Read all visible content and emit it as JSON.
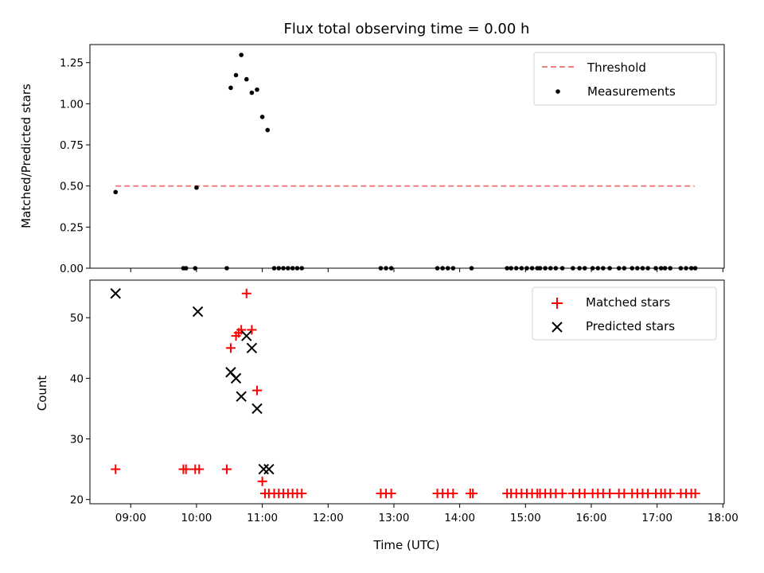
{
  "chart_data": [
    {
      "type": "scatter",
      "title": "Flux total observing time = 0.00 h",
      "xlabel": "",
      "ylabel": "Matched/Predicted stars",
      "xlim": [
        8.38,
        18.02
      ],
      "ylim": [
        0.0,
        1.36
      ],
      "yticks": [
        0.0,
        0.25,
        0.5,
        0.75,
        1.0,
        1.25
      ],
      "ytick_labels": [
        "0.00",
        "0.25",
        "0.50",
        "0.75",
        "1.00",
        "1.25"
      ],
      "xticks": [
        9,
        10,
        11,
        12,
        13,
        14,
        15,
        16,
        17,
        18
      ],
      "show_xtick_labels": false,
      "grid": false,
      "legend_position": "upper right",
      "threshold": {
        "name": "Threshold",
        "y": 0.5,
        "x_range": [
          8.77,
          17.57
        ],
        "color": "#f08080",
        "style": "dashed"
      },
      "series": [
        {
          "name": "Measurements",
          "marker": "dot",
          "color": "#000000",
          "x": [
            8.77,
            10.0,
            10.52,
            10.6,
            10.68,
            10.76,
            10.84,
            10.92,
            11.0,
            11.08,
            9.8,
            9.84,
            9.98,
            10.46,
            11.18,
            11.25,
            11.32,
            11.39,
            11.46,
            11.53,
            11.6,
            12.8,
            12.88,
            12.96,
            13.66,
            13.74,
            13.82,
            13.9,
            14.18,
            14.72,
            14.78,
            14.86,
            14.94,
            15.02,
            15.1,
            15.18,
            15.22,
            15.3,
            15.38,
            15.46,
            15.56,
            15.72,
            15.82,
            15.9,
            16.02,
            16.1,
            16.18,
            16.28,
            16.42,
            16.5,
            16.62,
            16.7,
            16.78,
            16.86,
            16.98,
            17.06,
            17.12,
            17.2,
            17.36,
            17.44,
            17.52,
            17.58
          ],
          "y": [
            0.463,
            0.49,
            1.097,
            1.174,
            1.297,
            1.149,
            1.067,
            1.086,
            0.92,
            0.84,
            0,
            0,
            0,
            0,
            0,
            0,
            0,
            0,
            0,
            0,
            0,
            0,
            0,
            0,
            0,
            0,
            0,
            0,
            0,
            0,
            0,
            0,
            0,
            0,
            0,
            0,
            0,
            0,
            0,
            0,
            0,
            0,
            0,
            0,
            0,
            0,
            0,
            0,
            0,
            0,
            0,
            0,
            0,
            0,
            0,
            0,
            0,
            0,
            0,
            0,
            0,
            0
          ]
        }
      ]
    },
    {
      "type": "scatter",
      "title": "",
      "xlabel": "Time (UTC)",
      "ylabel": "Count",
      "xlim": [
        8.38,
        18.02
      ],
      "ylim": [
        19.3,
        56.2
      ],
      "yticks": [
        20,
        30,
        40,
        50
      ],
      "ytick_labels": [
        "20",
        "30",
        "40",
        "50"
      ],
      "xticks": [
        9,
        10,
        11,
        12,
        13,
        14,
        15,
        16,
        17,
        18
      ],
      "xtick_labels": [
        "09:00",
        "10:00",
        "11:00",
        "12:00",
        "13:00",
        "14:00",
        "15:00",
        "16:00",
        "17:00",
        "18:00"
      ],
      "grid": false,
      "legend_position": "upper right",
      "series": [
        {
          "name": "Matched stars",
          "marker": "plus",
          "color": "#ff0000",
          "x": [
            8.77,
            9.8,
            9.84,
            9.98,
            10.04,
            10.46,
            10.52,
            10.6,
            10.64,
            10.68,
            10.76,
            10.84,
            10.92,
            11.0,
            11.04,
            11.1,
            11.18,
            11.25,
            11.32,
            11.39,
            11.46,
            11.53,
            11.6,
            12.8,
            12.88,
            12.96,
            13.66,
            13.74,
            13.82,
            13.9,
            14.16,
            14.2,
            14.72,
            14.78,
            14.86,
            14.94,
            15.02,
            15.1,
            15.18,
            15.22,
            15.3,
            15.38,
            15.46,
            15.56,
            15.72,
            15.82,
            15.9,
            16.02,
            16.1,
            16.18,
            16.28,
            16.42,
            16.5,
            16.62,
            16.7,
            16.78,
            16.86,
            16.98,
            17.06,
            17.12,
            17.2,
            17.36,
            17.44,
            17.52,
            17.58
          ],
          "y": [
            25,
            25,
            25,
            25,
            25,
            25,
            45,
            47,
            47.5,
            48,
            54,
            48,
            38,
            23,
            21,
            21,
            21,
            21,
            21,
            21,
            21,
            21,
            21,
            21,
            21,
            21,
            21,
            21,
            21,
            21,
            21,
            21,
            21,
            21,
            21,
            21,
            21,
            21,
            21,
            21,
            21,
            21,
            21,
            21,
            21,
            21,
            21,
            21,
            21,
            21,
            21,
            21,
            21,
            21,
            21,
            21,
            21,
            21,
            21,
            21,
            21,
            21,
            21,
            21,
            21
          ]
        },
        {
          "name": "Predicted stars",
          "marker": "x",
          "color": "#000000",
          "x": [
            8.77,
            10.02,
            10.52,
            10.6,
            10.68,
            10.76,
            10.84,
            10.92,
            11.02,
            11.1
          ],
          "y": [
            54,
            51,
            41,
            40,
            37,
            47,
            45,
            35,
            25,
            25
          ]
        }
      ]
    }
  ]
}
